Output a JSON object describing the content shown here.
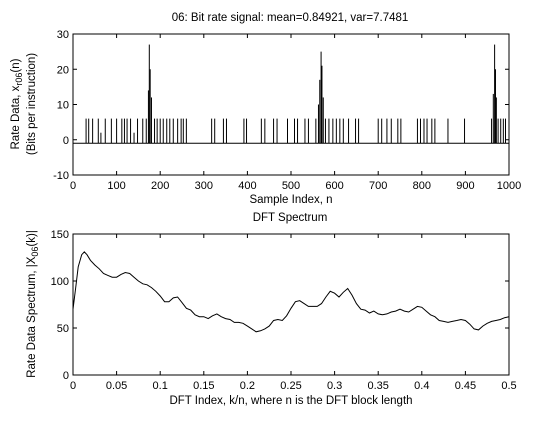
{
  "chart_data": [
    {
      "type": "line",
      "title": "06: Bit rate signal: mean=0.84921, var=7.7481",
      "xlabel": "Sample Index, n",
      "ylabel_line1": "Rate Data, x",
      "ylabel_sub": "r06",
      "ylabel_suffix": "(n)",
      "ylabel_line2": "(Bits per instruction)",
      "xlim": [
        0,
        1000
      ],
      "ylim": [
        -10,
        30
      ],
      "xticks": [
        0,
        100,
        200,
        300,
        400,
        500,
        600,
        700,
        800,
        900,
        1000
      ],
      "yticks": [
        -10,
        0,
        10,
        20,
        30
      ],
      "grid": false,
      "line_color": "#000000",
      "baseline": -1,
      "series": [
        {
          "spikes": [
            {
              "x": 30,
              "y": 6
            },
            {
              "x": 36,
              "y": 6
            },
            {
              "x": 45,
              "y": 6
            },
            {
              "x": 58,
              "y": 6
            },
            {
              "x": 64,
              "y": 2
            },
            {
              "x": 74,
              "y": 6
            },
            {
              "x": 88,
              "y": 6
            },
            {
              "x": 100,
              "y": 6
            },
            {
              "x": 112,
              "y": 6
            },
            {
              "x": 118,
              "y": 6
            },
            {
              "x": 124,
              "y": 6
            },
            {
              "x": 132,
              "y": 6
            },
            {
              "x": 140,
              "y": 2
            },
            {
              "x": 148,
              "y": 6
            },
            {
              "x": 160,
              "y": 6
            },
            {
              "x": 168,
              "y": 6
            },
            {
              "x": 173,
              "y": 14
            },
            {
              "x": 175,
              "y": 27
            },
            {
              "x": 177,
              "y": 20
            },
            {
              "x": 180,
              "y": 12
            },
            {
              "x": 187,
              "y": 6
            },
            {
              "x": 193,
              "y": 6
            },
            {
              "x": 200,
              "y": 6
            },
            {
              "x": 207,
              "y": 6
            },
            {
              "x": 215,
              "y": 6
            },
            {
              "x": 222,
              "y": 6
            },
            {
              "x": 230,
              "y": 6
            },
            {
              "x": 240,
              "y": 6
            },
            {
              "x": 248,
              "y": 6
            },
            {
              "x": 253,
              "y": 6
            },
            {
              "x": 260,
              "y": 6
            },
            {
              "x": 318,
              "y": 6
            },
            {
              "x": 325,
              "y": 6
            },
            {
              "x": 345,
              "y": 6
            },
            {
              "x": 352,
              "y": 6
            },
            {
              "x": 392,
              "y": 6
            },
            {
              "x": 398,
              "y": 6
            },
            {
              "x": 432,
              "y": 6
            },
            {
              "x": 440,
              "y": 6
            },
            {
              "x": 460,
              "y": 6
            },
            {
              "x": 468,
              "y": 6
            },
            {
              "x": 492,
              "y": 6
            },
            {
              "x": 508,
              "y": 6
            },
            {
              "x": 515,
              "y": 6
            },
            {
              "x": 532,
              "y": 6
            },
            {
              "x": 540,
              "y": 6
            },
            {
              "x": 557,
              "y": 6
            },
            {
              "x": 563,
              "y": 10
            },
            {
              "x": 566,
              "y": 17
            },
            {
              "x": 569,
              "y": 25
            },
            {
              "x": 571,
              "y": 21
            },
            {
              "x": 574,
              "y": 12
            },
            {
              "x": 579,
              "y": 6
            },
            {
              "x": 587,
              "y": 6
            },
            {
              "x": 596,
              "y": 6
            },
            {
              "x": 604,
              "y": 6
            },
            {
              "x": 612,
              "y": 6
            },
            {
              "x": 620,
              "y": 6
            },
            {
              "x": 632,
              "y": 6
            },
            {
              "x": 648,
              "y": 6
            },
            {
              "x": 655,
              "y": 6
            },
            {
              "x": 700,
              "y": 6
            },
            {
              "x": 708,
              "y": 6
            },
            {
              "x": 720,
              "y": 6
            },
            {
              "x": 730,
              "y": 6
            },
            {
              "x": 745,
              "y": 6
            },
            {
              "x": 752,
              "y": 6
            },
            {
              "x": 790,
              "y": 6
            },
            {
              "x": 797,
              "y": 6
            },
            {
              "x": 805,
              "y": 6
            },
            {
              "x": 812,
              "y": 6
            },
            {
              "x": 823,
              "y": 6
            },
            {
              "x": 830,
              "y": 6
            },
            {
              "x": 860,
              "y": 6
            },
            {
              "x": 898,
              "y": 6
            },
            {
              "x": 960,
              "y": 6
            },
            {
              "x": 964,
              "y": 13
            },
            {
              "x": 967,
              "y": 27
            },
            {
              "x": 969,
              "y": 20
            },
            {
              "x": 971,
              "y": 12
            },
            {
              "x": 975,
              "y": 6
            },
            {
              "x": 981,
              "y": 6
            },
            {
              "x": 987,
              "y": 6
            },
            {
              "x": 992,
              "y": 6
            }
          ]
        }
      ]
    },
    {
      "type": "line",
      "title": "DFT Spectrum",
      "xlabel": "DFT Index, k/n, where n is the DFT block length",
      "ylabel_line1": "Rate Data Spectrum, |X",
      "ylabel_sub": "06",
      "ylabel_suffix": "(k)|",
      "xlim": [
        0,
        0.5
      ],
      "ylim": [
        0,
        150
      ],
      "xticks": [
        0,
        0.05,
        0.1,
        0.15,
        0.2,
        0.25,
        0.3,
        0.35,
        0.4,
        0.45,
        0.5
      ],
      "yticks": [
        0,
        50,
        100,
        150
      ],
      "grid": false,
      "line_color": "#000000",
      "series": [
        {
          "x": [
            0,
            0.003,
            0.006,
            0.01,
            0.013,
            0.016,
            0.02,
            0.025,
            0.03,
            0.035,
            0.04,
            0.045,
            0.05,
            0.055,
            0.06,
            0.065,
            0.07,
            0.075,
            0.08,
            0.085,
            0.09,
            0.095,
            0.1,
            0.105,
            0.11,
            0.115,
            0.12,
            0.125,
            0.13,
            0.135,
            0.14,
            0.145,
            0.15,
            0.155,
            0.16,
            0.165,
            0.17,
            0.175,
            0.18,
            0.185,
            0.19,
            0.195,
            0.2,
            0.205,
            0.21,
            0.215,
            0.22,
            0.225,
            0.23,
            0.235,
            0.24,
            0.245,
            0.25,
            0.255,
            0.26,
            0.265,
            0.27,
            0.275,
            0.28,
            0.285,
            0.29,
            0.295,
            0.3,
            0.305,
            0.31,
            0.315,
            0.32,
            0.325,
            0.33,
            0.335,
            0.34,
            0.345,
            0.35,
            0.355,
            0.36,
            0.365,
            0.37,
            0.375,
            0.38,
            0.385,
            0.39,
            0.395,
            0.4,
            0.405,
            0.41,
            0.415,
            0.42,
            0.425,
            0.43,
            0.435,
            0.44,
            0.445,
            0.45,
            0.455,
            0.46,
            0.465,
            0.47,
            0.475,
            0.48,
            0.485,
            0.49,
            0.495,
            0.5
          ],
          "y": [
            70,
            92,
            115,
            128,
            131,
            128,
            122,
            117,
            113,
            108,
            106,
            104,
            104,
            107,
            109,
            108,
            104,
            100,
            97,
            96,
            93,
            89,
            84,
            78,
            78,
            82,
            83,
            77,
            71,
            69,
            64,
            62,
            62,
            60,
            63,
            65,
            62,
            60,
            59,
            56,
            56,
            55,
            52,
            49,
            46,
            47,
            49,
            52,
            58,
            59,
            58,
            63,
            71,
            78,
            79,
            76,
            73,
            73,
            73,
            76,
            83,
            89,
            87,
            83,
            88,
            92,
            85,
            76,
            70,
            69,
            66,
            68,
            65,
            64,
            65,
            67,
            68,
            70,
            68,
            67,
            70,
            73,
            72,
            68,
            64,
            62,
            58,
            57,
            56,
            57,
            58,
            59,
            58,
            54,
            49,
            48,
            52,
            55,
            57,
            58,
            59,
            61,
            62
          ]
        }
      ]
    }
  ]
}
